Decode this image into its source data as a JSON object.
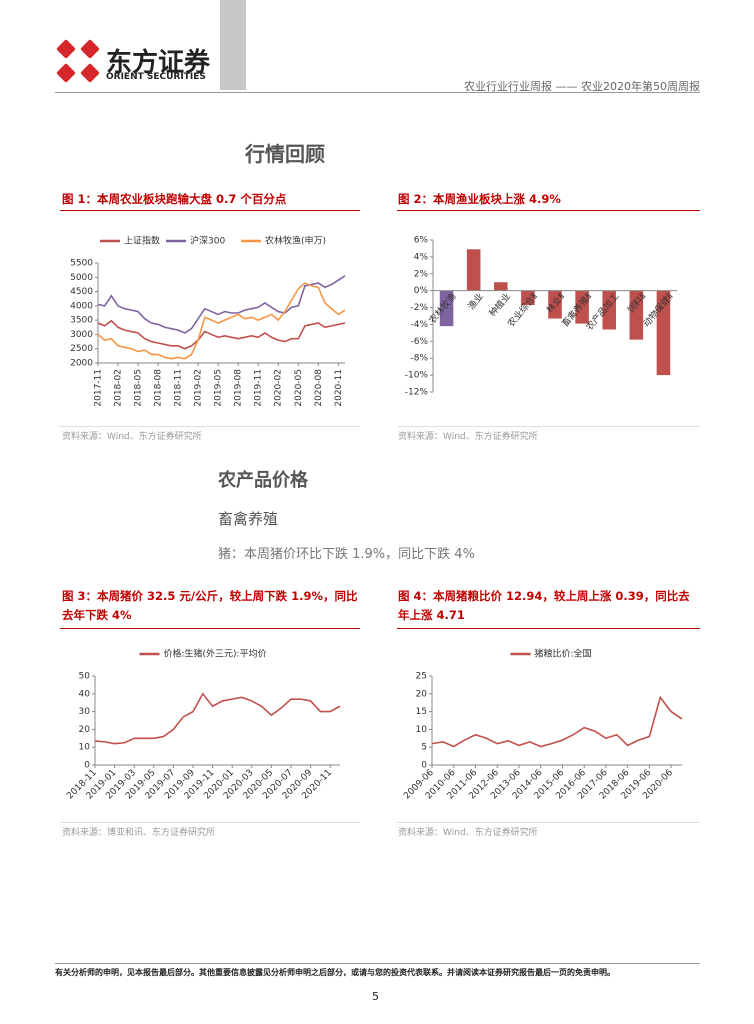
{
  "header": {
    "company_cn": "东方证券",
    "company_en": "ORIENT SECURITIES",
    "report_title": "农业行业行业周报 —— 农业2020年第50周周报"
  },
  "sections": {
    "market": "行情回顾",
    "prices": "农产品价格",
    "livestock": "畜禽养殖",
    "pig_summary": "猪：本周猪价环比下跌 1.9%，同比下跌 4%"
  },
  "figures": [
    {
      "caption": "图 1：本周农业板块跑输大盘 0.7 个百分点",
      "source": "资料来源：Wind、东方证券研究所",
      "chart": {
        "type": "line",
        "legend": "top",
        "categories": [
          "2017-11",
          null,
          null,
          "2018-02",
          null,
          null,
          "2018-05",
          null,
          null,
          "2018-08",
          null,
          null,
          "2018-11",
          null,
          null,
          "2019-02",
          null,
          null,
          "2019-05",
          null,
          null,
          "2019-08",
          null,
          null,
          "2019-11",
          null,
          null,
          "2020-02",
          null,
          null,
          "2020-05",
          null,
          null,
          "2020-08",
          null,
          null,
          "2020-11",
          null
        ],
        "series": [
          {
            "name": "上证指数",
            "color": "#c0504d",
            "values": [
              3400,
              3300,
              3480,
              3250,
              3150,
              3100,
              3050,
              2850,
              2750,
              2700,
              2650,
              2600,
              2600,
              2500,
              2600,
              2800,
              3100,
              3000,
              2900,
              2950,
              2900,
              2850,
              2900,
              2950,
              2900,
              3050,
              2900,
              2800,
              2750,
              2850,
              2850,
              3300,
              3350,
              3400,
              3250,
              3300,
              3350,
              3400
            ]
          },
          {
            "name": "沪深300",
            "color": "#8064a2",
            "values": [
              4050,
              4000,
              4350,
              4000,
              3900,
              3850,
              3800,
              3550,
              3400,
              3350,
              3250,
              3200,
              3150,
              3050,
              3200,
              3550,
              3900,
              3800,
              3700,
              3800,
              3750,
              3750,
              3850,
              3900,
              3950,
              4100,
              3950,
              3800,
              3750,
              3950,
              4000,
              4700,
              4750,
              4800,
              4650,
              4750,
              4900,
              5050
            ]
          },
          {
            "name": "农林牧渔(申万)",
            "color": "#f79646",
            "values": [
              3000,
              2800,
              2850,
              2600,
              2550,
              2500,
              2400,
              2450,
              2300,
              2300,
              2200,
              2150,
              2200,
              2150,
              2300,
              2800,
              3600,
              3500,
              3400,
              3500,
              3600,
              3700,
              3550,
              3600,
              3500,
              3600,
              3700,
              3500,
              3800,
              4200,
              4600,
              4800,
              4700,
              4650,
              4100,
              3900,
              3700,
              3850
            ]
          }
        ],
        "ylim": [
          2000,
          5500
        ],
        "yticks": [
          2000,
          2500,
          3000,
          3500,
          4000,
          4500,
          5000,
          5500
        ]
      }
    },
    {
      "caption": "图 2：本周渔业板块上涨 4.9%",
      "source": "资料来源：Wind、东方证券研究所",
      "chart": {
        "type": "bar",
        "categories": [
          "农林牧渔",
          "渔业",
          "种植业",
          "农业综合Ⅱ",
          "林业Ⅱ",
          "畜禽养殖Ⅱ",
          "农产品加工",
          "饲料Ⅱ",
          "动物保健Ⅱ"
        ],
        "values": [
          -4.2,
          4.9,
          1.0,
          -1.7,
          -3.3,
          -3.9,
          -4.6,
          -5.8,
          -10.0
        ],
        "colors": [
          "#8064a2",
          "#c0504d",
          "#c0504d",
          "#c0504d",
          "#c0504d",
          "#c0504d",
          "#c0504d",
          "#c0504d",
          "#c0504d"
        ],
        "ylim": [
          -12,
          6
        ],
        "yticks": [
          {
            "value": -12,
            "label": "-12%"
          },
          {
            "value": -10,
            "label": "-10%"
          },
          {
            "value": -8,
            "label": "-8%"
          },
          {
            "value": -6,
            "label": "-6%"
          },
          {
            "value": -4,
            "label": "-4%"
          },
          {
            "value": -2,
            "label": "-2%"
          },
          {
            "value": 0,
            "label": "0%"
          },
          {
            "value": 2,
            "label": "2%"
          },
          {
            "value": 4,
            "label": "4%"
          },
          {
            "value": 6,
            "label": "6%"
          }
        ]
      }
    },
    {
      "caption": "图 3：本周猪价 32.5 元/公斤，较上周下跌 1.9%，同比去年下跌 4%",
      "source": "资料来源：博亚和讯、东方证券研究所",
      "chart": {
        "type": "line",
        "legend": "top",
        "categories": [
          "2018-11",
          null,
          "2019-01",
          null,
          "2019-03",
          null,
          "2019-05",
          null,
          "2019-07",
          null,
          "2019-09",
          null,
          "2019-11",
          null,
          "2020-01",
          null,
          "2020-03",
          null,
          "2020-05",
          null,
          "2020-07",
          null,
          "2020-09",
          null,
          "2020-11",
          null
        ],
        "series": [
          {
            "name": "价格:生猪(外三元):平均价",
            "color": "#c0504d",
            "values": [
              13.5,
              13,
              12,
              12.5,
              15,
              15,
              15,
              16,
              20,
              27,
              30,
              40,
              33,
              36,
              37,
              38,
              36,
              33,
              28,
              32,
              37,
              37,
              36,
              30,
              30,
              33
            ]
          }
        ],
        "ylim": [
          0,
          50
        ],
        "yticks": [
          0,
          10,
          20,
          30,
          40,
          50
        ]
      }
    },
    {
      "caption": "图 4：本周猪粮比价 12.94，较上周上涨 0.39，同比去年上涨 4.71",
      "source": "资料来源：Wind、东方证券研究所",
      "chart": {
        "type": "line",
        "legend": "top",
        "categories": [
          "2009-06",
          null,
          "2010-06",
          null,
          "2011-06",
          null,
          "2012-06",
          null,
          "2013-06",
          null,
          "2014-06",
          null,
          "2015-06",
          null,
          "2016-06",
          null,
          "2017-06",
          null,
          "2018-06",
          null,
          "2019-06",
          null,
          "2020-06",
          null
        ],
        "series": [
          {
            "name": "猪粮比价:全国",
            "color": "#c0504d",
            "values": [
              6,
              6.5,
              5.2,
              7,
              8.5,
              7.5,
              6,
              6.8,
              5.5,
              6.5,
              5.2,
              6,
              7,
              8.5,
              10.5,
              9.5,
              7.5,
              8.5,
              5.5,
              7,
              8,
              19,
              15,
              12.94
            ]
          }
        ],
        "ylim": [
          0,
          25
        ],
        "yticks": [
          0,
          5,
          10,
          15,
          20,
          25
        ]
      }
    }
  ],
  "footer": {
    "disclaimer": "有关分析师的申明，见本报告最后部分。其他重要信息披露见分析师申明之后部分，或请与您的投资代表联系。并请阅读本证券研究报告最后一页的免责申明。",
    "page": "5"
  }
}
